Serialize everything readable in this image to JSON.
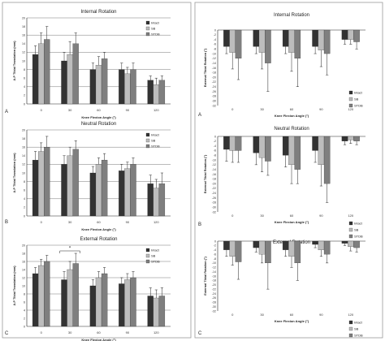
{
  "figure": {
    "left_caption_letters": [
      "A",
      "B",
      "C"
    ],
    "right_caption_letters": [
      "A",
      "B",
      "C"
    ]
  },
  "styles": {
    "Intact": "#333333",
    "SB": "#bdbdbd",
    "STDB": "#7f7f7f",
    "panel_border": "#999999",
    "grid": "#555555"
  },
  "chart_data": [
    {
      "id": "left-internal",
      "type": "bar",
      "title": "Internal Rotation",
      "xlabel": "Knee Flexion Angle (°)",
      "ylabel": "A-P Tibial Translation (mm)",
      "categories": [
        "0",
        "30",
        "60",
        "90",
        "120"
      ],
      "yticks": [
        "0",
        "2",
        "4",
        "6",
        "8",
        "10",
        "12",
        "14",
        "16",
        "18",
        "20"
      ],
      "ylim": [
        0,
        20
      ],
      "grid": true,
      "legend": "top-right",
      "series": [
        {
          "name": "Intact",
          "values": [
            11.5,
            10.0,
            8.0,
            8.0,
            5.5
          ],
          "err": [
            2.0,
            2.0,
            1.5,
            1.5,
            1.0
          ]
        },
        {
          "name": "SB",
          "values": [
            14.0,
            11.5,
            9.0,
            7.0,
            4.5
          ],
          "err": [
            2.5,
            3.0,
            2.0,
            1.5,
            1.5
          ]
        },
        {
          "name": "STDB",
          "values": [
            15.0,
            14.0,
            10.5,
            8.0,
            5.5
          ],
          "err": [
            3.0,
            2.5,
            1.5,
            1.5,
            1.0
          ]
        }
      ],
      "annotations": []
    },
    {
      "id": "left-neutral",
      "type": "bar",
      "title": "Neutral Rotation",
      "xlabel": "Knee Flexion Angle (°)",
      "ylabel": "A-P Tibial Translation (mm)",
      "categories": [
        "0",
        "30",
        "60",
        "90",
        "120"
      ],
      "yticks": [
        "0",
        "2",
        "4",
        "6",
        "8",
        "10",
        "12",
        "14",
        "16",
        "18",
        "20"
      ],
      "ylim": [
        0,
        20
      ],
      "grid": true,
      "legend": "top-right",
      "series": [
        {
          "name": "Intact",
          "values": [
            13.0,
            12.0,
            10.0,
            10.5,
            7.5
          ],
          "err": [
            2.0,
            2.0,
            1.5,
            1.5,
            2.0
          ]
        },
        {
          "name": "SB",
          "values": [
            15.0,
            14.0,
            12.0,
            11.0,
            6.5
          ],
          "err": [
            2.0,
            2.0,
            1.5,
            1.5,
            2.0
          ]
        },
        {
          "name": "STDB",
          "values": [
            16.0,
            15.5,
            13.0,
            12.0,
            7.5
          ],
          "err": [
            2.5,
            2.0,
            1.5,
            1.5,
            2.5
          ]
        }
      ],
      "annotations": []
    },
    {
      "id": "left-external",
      "type": "bar",
      "title": "External Rotation",
      "xlabel": "Knee Flexion Angle (°)",
      "ylabel": "A-P Tibial Translation (mm)",
      "categories": [
        "0",
        "30",
        "60",
        "90",
        "120"
      ],
      "yticks": [
        "0",
        "2",
        "4",
        "6",
        "8",
        "10",
        "12",
        "14",
        "16",
        "18",
        "20"
      ],
      "ylim": [
        0,
        20
      ],
      "grid": true,
      "legend": "top-right",
      "series": [
        {
          "name": "Intact",
          "values": [
            13.0,
            11.5,
            10.0,
            10.5,
            7.5
          ],
          "err": [
            1.5,
            2.0,
            1.5,
            1.5,
            2.0
          ]
        },
        {
          "name": "SB",
          "values": [
            15.0,
            14.0,
            12.0,
            11.5,
            7.0
          ],
          "err": [
            1.5,
            2.0,
            1.5,
            1.5,
            2.0
          ]
        },
        {
          "name": "STDB",
          "values": [
            16.0,
            15.5,
            13.0,
            12.0,
            7.5
          ],
          "err": [
            1.5,
            2.5,
            1.5,
            1.5,
            2.0
          ]
        }
      ],
      "annotations": [
        {
          "label": "*",
          "between": [
            "0",
            "30"
          ],
          "category": "30"
        }
      ]
    },
    {
      "id": "right-internal",
      "type": "bar",
      "title": "Internal Rotation",
      "xlabel": "Knee Flexion Angle (°)",
      "ylabel": "External Tibial Rotation (°)",
      "categories": [
        "0",
        "30",
        "60",
        "90",
        "120"
      ],
      "yticks": [
        "0",
        "-2",
        "-4",
        "-6",
        "-8",
        "-10",
        "-12",
        "-14",
        "-16",
        "-18",
        "-20",
        "-22",
        "-24",
        "-26",
        "-28",
        "-30",
        "-32"
      ],
      "ylim": [
        -32,
        0
      ],
      "grid": false,
      "legend": "bottom-right",
      "series": [
        {
          "name": "Intact",
          "values": [
            -7.0,
            -7.0,
            -7.0,
            -7.0,
            -4.0
          ],
          "err": [
            3.0,
            3.0,
            3.0,
            3.0,
            2.0
          ]
        },
        {
          "name": "SB",
          "values": [
            -9.5,
            -9.5,
            -9.5,
            -8.5,
            -4.0
          ],
          "err": [
            7.0,
            7.0,
            8.0,
            7.0,
            2.0
          ]
        },
        {
          "name": "STDB",
          "values": [
            -12.0,
            -14.0,
            -12.0,
            -10.0,
            -5.0
          ],
          "err": [
            9.0,
            12.0,
            12.0,
            9.0,
            3.0
          ]
        }
      ],
      "annotations": []
    },
    {
      "id": "right-neutral",
      "type": "bar",
      "title": "Neutral Rotation",
      "xlabel": "Knee Flexion Angle (°)",
      "ylabel": "External Tibial Rotation (°)",
      "categories": [
        "0",
        "30",
        "60",
        "90",
        "120"
      ],
      "yticks": [
        "0",
        "-2",
        "-4",
        "-6",
        "-8",
        "-10",
        "-12",
        "-14",
        "-16",
        "-18",
        "-20",
        "-22",
        "-24",
        "-26",
        "-28",
        "-30",
        "-32"
      ],
      "ylim": [
        -32,
        0
      ],
      "grid": false,
      "legend": "bottom-right",
      "series": [
        {
          "name": "Intact",
          "values": [
            -5.5,
            -7.0,
            -8.0,
            -6.0,
            -2.0
          ],
          "err": [
            5.0,
            5.0,
            5.0,
            5.0,
            1.5
          ]
        },
        {
          "name": "SB",
          "values": [
            -6.0,
            -9.0,
            -12.0,
            -12.0,
            -1.5
          ],
          "err": [
            5.0,
            6.0,
            8.0,
            9.0,
            1.5
          ]
        },
        {
          "name": "STDB",
          "values": [
            -6.0,
            -10.5,
            -14.0,
            -20.0,
            -2.0
          ],
          "err": [
            5.0,
            6.0,
            6.0,
            8.0,
            1.5
          ]
        }
      ],
      "annotations": []
    },
    {
      "id": "right-external",
      "type": "bar",
      "title": "External Rotation",
      "xlabel": "Knee Flexion Angle (°)",
      "ylabel": "External Tibial Rotation (°)",
      "categories": [
        "0",
        "30",
        "60",
        "90",
        "120"
      ],
      "yticks": [
        "0",
        "-2",
        "-4",
        "-6",
        "-8",
        "-10",
        "-12",
        "-14",
        "-16",
        "-18",
        "-20",
        "-22",
        "-24",
        "-26",
        "-28",
        "-30",
        "-32"
      ],
      "ylim": [
        -32,
        0
      ],
      "grid": false,
      "legend": "bottom-right",
      "series": [
        {
          "name": "Intact",
          "values": [
            -4.0,
            -3.0,
            -4.0,
            -1.5,
            -1.0
          ],
          "err": [
            3.0,
            2.0,
            3.0,
            1.5,
            1.0
          ]
        },
        {
          "name": "SB",
          "values": [
            -7.0,
            -6.0,
            -7.0,
            -4.0,
            -2.5
          ],
          "err": [
            4.0,
            4.0,
            5.0,
            3.0,
            2.0
          ]
        },
        {
          "name": "STDB",
          "values": [
            -9.5,
            -10.0,
            -10.0,
            -6.0,
            -3.0
          ],
          "err": [
            8.0,
            12.0,
            8.0,
            4.0,
            2.0
          ]
        }
      ],
      "annotations": []
    }
  ]
}
